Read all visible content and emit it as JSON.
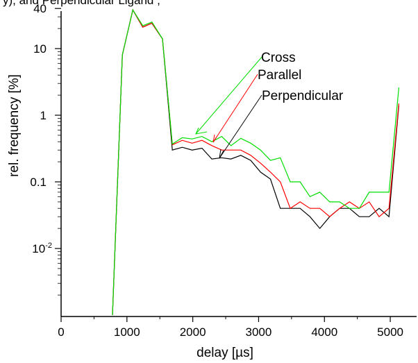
{
  "caption_fragment": "y), and Perpendicular Ligand , ",
  "chart_data": {
    "type": "line",
    "xlabel": "delay [µs]",
    "ylabel": "rel. frequency [%]",
    "xlim": [
      0,
      5400
    ],
    "ylim": [
      0.001,
      40
    ],
    "yscale": "log",
    "x_ticks": [
      0,
      1000,
      2000,
      3000,
      4000,
      5000
    ],
    "y_ticks": [
      {
        "value": 40,
        "label": "40"
      },
      {
        "value": 10,
        "label": "10"
      },
      {
        "value": 1,
        "label": "1"
      },
      {
        "value": 0.1,
        "label": "0.1"
      },
      {
        "value": 0.01,
        "label": "10",
        "exponent": "-2"
      }
    ],
    "grid": false,
    "series": [
      {
        "name": "Cross",
        "color": "#00dd00",
        "x": [
          780,
          930,
          1090,
          1240,
          1380,
          1540,
          1690,
          1840,
          1990,
          2140,
          2290,
          2440,
          2580,
          2730,
          2880,
          3030,
          3180,
          3330,
          3480,
          3630,
          3780,
          3930,
          4080,
          4230,
          4380,
          4530,
          4680,
          4830,
          4980,
          5130
        ],
        "y": [
          0.001,
          8.0,
          38.0,
          22.0,
          25.0,
          14.0,
          0.37,
          0.46,
          0.44,
          0.48,
          0.4,
          0.48,
          0.35,
          0.45,
          0.38,
          0.3,
          0.21,
          0.23,
          0.1,
          0.1,
          0.06,
          0.07,
          0.05,
          0.05,
          0.04,
          0.04,
          0.07,
          0.07,
          0.07,
          2.6
        ]
      },
      {
        "name": "Parallel",
        "color": "#ff0000",
        "x": [
          780,
          930,
          1090,
          1240,
          1380,
          1540,
          1690,
          1840,
          1990,
          2140,
          2290,
          2440,
          2580,
          2730,
          2880,
          3030,
          3180,
          3330,
          3480,
          3630,
          3780,
          3930,
          4080,
          4230,
          4380,
          4530,
          4680,
          4830,
          4980,
          5130
        ],
        "y": [
          0.001,
          8.0,
          38.0,
          21.0,
          24.0,
          14.0,
          0.36,
          0.42,
          0.38,
          0.42,
          0.35,
          0.3,
          0.3,
          0.3,
          0.25,
          0.19,
          0.14,
          0.1,
          0.04,
          0.05,
          0.04,
          0.04,
          0.03,
          0.04,
          0.05,
          0.04,
          0.05,
          0.03,
          0.04,
          1.5
        ]
      },
      {
        "name": "Perpendicular",
        "color": "#000000",
        "x": [
          780,
          930,
          1090,
          1240,
          1380,
          1540,
          1690,
          1840,
          1990,
          2140,
          2290,
          2440,
          2580,
          2730,
          2880,
          3030,
          3180,
          3330,
          3480,
          3630,
          3780,
          3930,
          4080,
          4230,
          4380,
          4530,
          4680,
          4830,
          4980,
          5130
        ],
        "y": [
          0.001,
          8.0,
          38.0,
          21.0,
          24.0,
          14.0,
          0.3,
          0.33,
          0.3,
          0.32,
          0.22,
          0.23,
          0.22,
          0.25,
          0.21,
          0.14,
          0.11,
          0.04,
          0.04,
          0.04,
          0.03,
          0.02,
          0.03,
          0.04,
          0.04,
          0.03,
          0.03,
          0.04,
          0.03,
          1.4
        ]
      }
    ]
  }
}
